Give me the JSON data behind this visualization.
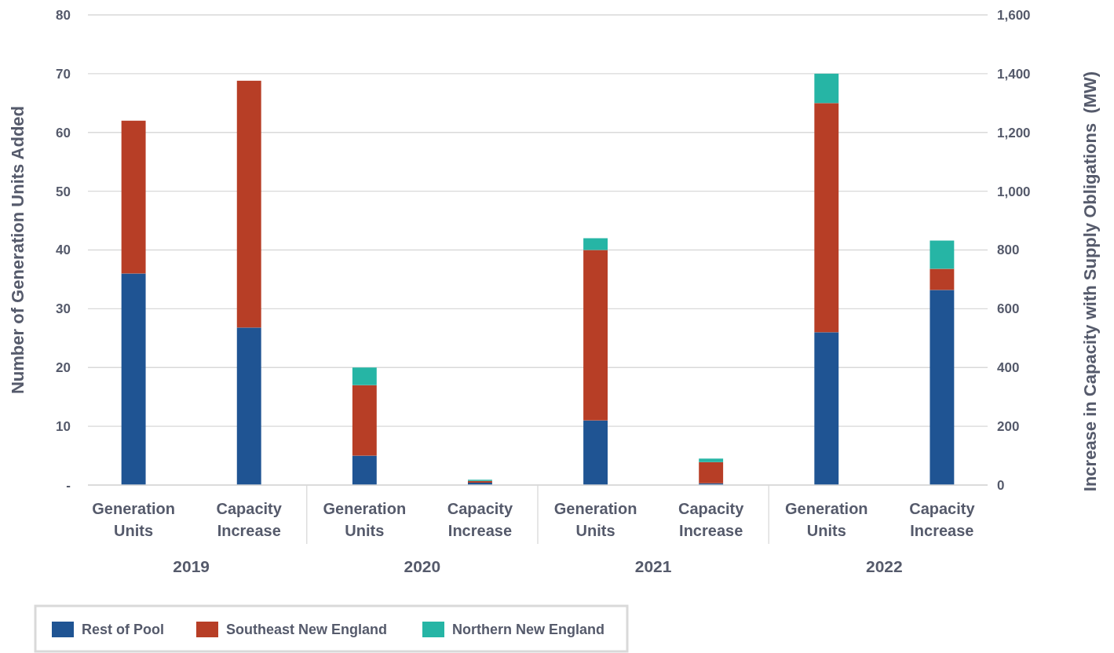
{
  "chart_data": {
    "type": "bar",
    "stacked": true,
    "ylabel": "Number of Generation Units Added",
    "y2label": "Increase in Capacity with Supply Obligations  (MW)",
    "categories": [
      "Generation Units",
      "Capacity Increase",
      "Generation Units",
      "Capacity Increase",
      "Generation Units",
      "Capacity Increase",
      "Generation Units",
      "Capacity Increase"
    ],
    "annotations": [
      "2019",
      "2020",
      "2021",
      "2022"
    ],
    "ylim": [
      0,
      80
    ],
    "yticks": [
      {
        "value": 0,
        "label": "-"
      },
      10,
      20,
      30,
      40,
      50,
      60,
      70,
      80
    ],
    "y2lim": [
      0,
      1600
    ],
    "y2ticks": [
      0,
      200,
      400,
      600,
      800,
      {
        "value": 1000,
        "label": "1,000"
      },
      {
        "value": 1200,
        "label": "1,200"
      },
      {
        "value": 1400,
        "label": "1,400"
      },
      {
        "value": 1600,
        "label": "1,600"
      }
    ],
    "grid": "y",
    "legend": "bottom left",
    "series": [
      {
        "name": "Rest of Pool",
        "color": "#1f5493",
        "values": [
          36,
          null,
          5,
          null,
          11,
          null,
          26,
          null
        ]
      },
      {
        "name": "Southeast New England",
        "color": "#b73e26",
        "values": [
          26,
          null,
          12,
          null,
          29,
          null,
          39,
          null
        ]
      },
      {
        "name": "Northern New England",
        "color": "#26b5a5",
        "values": [
          0,
          null,
          3,
          null,
          2,
          null,
          5,
          null
        ]
      },
      {
        "color": "#1f5493",
        "axis": "y2",
        "values": [
          null,
          536,
          null,
          8,
          null,
          6,
          null,
          664
        ]
      },
      {
        "color": "#b73e26",
        "axis": "y2",
        "values": [
          null,
          840,
          null,
          6,
          null,
          72,
          null,
          72
        ]
      },
      {
        "color": "#26b5a5",
        "axis": "y2",
        "values": [
          null,
          0,
          null,
          4,
          null,
          12,
          null,
          96
        ]
      }
    ]
  }
}
